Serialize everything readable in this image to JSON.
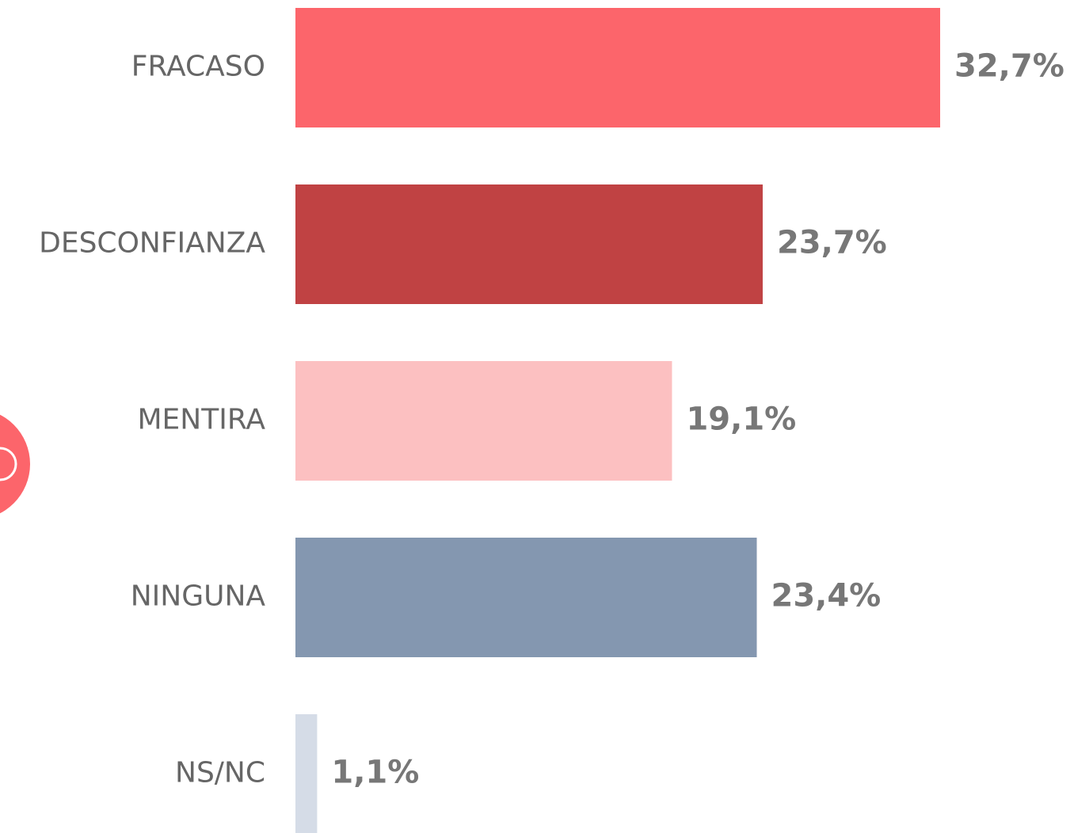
{
  "chart_data": {
    "type": "bar",
    "orientation": "horizontal",
    "categories": [
      "FRACASO",
      "DESCONFIANZA",
      "MENTIRA",
      "NINGUNA",
      "NS/NC"
    ],
    "values": [
      32.7,
      23.7,
      19.1,
      23.4,
      1.1
    ],
    "value_labels": [
      "32,7%",
      "23,7%",
      "19,1%",
      "23,4%",
      "1,1%"
    ],
    "colors": [
      "#fc656b",
      "#c04243",
      "#fcc0c1",
      "#8497b0",
      "#d5dce7"
    ]
  }
}
